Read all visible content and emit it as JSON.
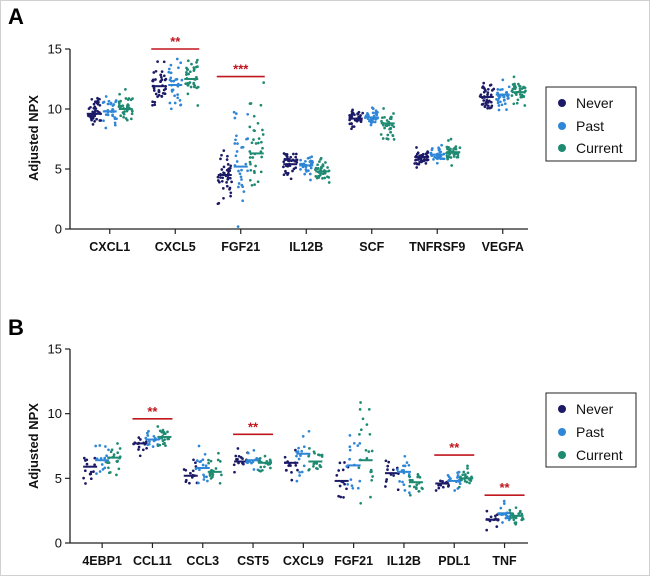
{
  "colors": {
    "never": "#1c1a66",
    "past": "#2f86d6",
    "current": "#1f8a72",
    "sig": "#c0161e"
  },
  "legend": [
    {
      "key": "never",
      "label": "Never"
    },
    {
      "key": "past",
      "label": "Past"
    },
    {
      "key": "current",
      "label": "Current"
    }
  ],
  "chart_data": [
    {
      "type": "scatter",
      "panel": "A",
      "ylabel": "Adjusted NPX",
      "ylim": [
        0,
        15
      ],
      "yticks": [
        0,
        5,
        10,
        15
      ],
      "categories": [
        "CXCL1",
        "CXCL5",
        "FGF21",
        "IL12B",
        "SCF",
        "TNFRSF9",
        "VEGFA"
      ],
      "series": [
        {
          "key": "never",
          "name": "Never",
          "values": [
            9.6,
            11.9,
            4.5,
            5.4,
            9.2,
            6.0,
            11.0
          ]
        },
        {
          "key": "past",
          "name": "Past",
          "values": [
            9.8,
            12.0,
            5.2,
            5.3,
            9.3,
            6.2,
            11.2
          ]
        },
        {
          "key": "current",
          "name": "Current",
          "values": [
            10.0,
            12.5,
            6.3,
            4.8,
            8.8,
            6.4,
            11.4
          ]
        }
      ],
      "spread": [
        [
          0.55,
          0.7,
          0.6
        ],
        [
          0.8,
          1.1,
          0.9
        ],
        [
          1.3,
          2.0,
          2.2
        ],
        [
          0.5,
          0.6,
          0.5
        ],
        [
          0.45,
          0.4,
          0.6
        ],
        [
          0.35,
          0.35,
          0.45
        ],
        [
          0.5,
          0.55,
          0.6
        ]
      ],
      "significance": [
        {
          "category": "CXCL5",
          "label": "**",
          "y": 15.0
        },
        {
          "category": "FGF21",
          "label": "***",
          "y": 12.7
        }
      ]
    },
    {
      "type": "scatter",
      "panel": "B",
      "ylabel": "Adjusted NPX",
      "ylim": [
        0,
        15
      ],
      "yticks": [
        0,
        5,
        10,
        15
      ],
      "categories": [
        "4EBP1",
        "CCL11",
        "CCL3",
        "CST5",
        "CXCL9",
        "FGF21",
        "IL12B",
        "PDL1",
        "TNF"
      ],
      "series": [
        {
          "key": "never",
          "name": "Never",
          "values": [
            5.9,
            7.7,
            5.2,
            6.3,
            6.2,
            4.8,
            5.4,
            4.6,
            1.8
          ]
        },
        {
          "key": "past",
          "name": "Past",
          "values": [
            6.4,
            8.0,
            5.8,
            6.4,
            6.9,
            6.0,
            5.5,
            4.8,
            2.3
          ]
        },
        {
          "key": "current",
          "name": "Current",
          "values": [
            6.6,
            8.2,
            5.5,
            6.2,
            6.3,
            6.4,
            4.7,
            5.0,
            2.1
          ]
        }
      ],
      "spread": [
        [
          0.7,
          0.6,
          0.7
        ],
        [
          0.4,
          0.4,
          0.45
        ],
        [
          0.5,
          0.7,
          0.6
        ],
        [
          0.45,
          0.4,
          0.35
        ],
        [
          0.6,
          0.8,
          0.6
        ],
        [
          0.8,
          1.3,
          2.2
        ],
        [
          0.5,
          0.7,
          0.5
        ],
        [
          0.25,
          0.35,
          0.4
        ],
        [
          0.3,
          0.4,
          0.35
        ]
      ],
      "significance": [
        {
          "category": "CCL11",
          "label": "**",
          "y": 9.6
        },
        {
          "category": "CST5",
          "label": "**",
          "y": 8.4
        },
        {
          "category": "PDL1",
          "label": "**",
          "y": 6.8
        },
        {
          "category": "TNF",
          "label": "**",
          "y": 3.7
        }
      ]
    }
  ]
}
